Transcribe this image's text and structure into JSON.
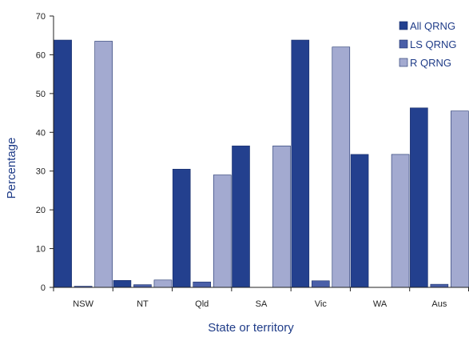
{
  "chart_data": {
    "type": "bar",
    "title": "",
    "xlabel": "State or territory",
    "ylabel": "Percentage",
    "ylim": [
      0,
      70
    ],
    "yticks": [
      0,
      10,
      20,
      30,
      40,
      50,
      60,
      70
    ],
    "grid": false,
    "legend_position": "top-right",
    "categories": [
      "NSW",
      "NT",
      "Qld",
      "SA",
      "Vic",
      "WA",
      "Aus"
    ],
    "series": [
      {
        "name": "All QRNG",
        "color": "#23408e",
        "values": [
          63.8,
          1.8,
          30.5,
          36.5,
          63.8,
          34.3,
          46.3
        ]
      },
      {
        "name": "LS QRNG",
        "color": "#4a5fa8",
        "values": [
          0.3,
          0.7,
          1.4,
          0,
          1.7,
          0,
          0.8
        ]
      },
      {
        "name": "R QRNG",
        "color": "#a3aad0",
        "values": [
          63.5,
          1.9,
          29.0,
          36.5,
          62.0,
          34.3,
          45.5
        ]
      }
    ]
  }
}
